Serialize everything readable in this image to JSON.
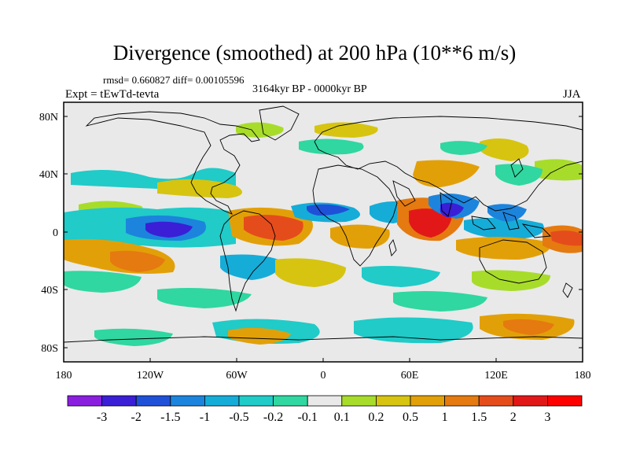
{
  "title": "Divergence (smoothed) at 200 hPa (10**6 m/s)",
  "stats": "rmsd= 0.660827 diff= 0.00105596",
  "period": "3164kyr BP - 0000kyr BP",
  "experiment": "Expt = tEwTd-tevta",
  "season": "JJA",
  "lat_ticks": [
    "80N",
    "40N",
    "0",
    "40S",
    "80S"
  ],
  "lon_ticks": [
    "180",
    "120W",
    "60W",
    "0",
    "60E",
    "120E",
    "180"
  ],
  "colorbar": {
    "labels": [
      "-3",
      "-2",
      "-1.5",
      "-1",
      "-0.5",
      "-0.2",
      "-0.1",
      "0.1",
      "0.2",
      "0.5",
      "1",
      "1.5",
      "2",
      "3"
    ],
    "colors": [
      "#8a1fe0",
      "#3a1fd6",
      "#1f50d8",
      "#1c84dc",
      "#16acd8",
      "#20cbc8",
      "#30d7a0",
      "#e9e9e9",
      "#a8dc2a",
      "#d6c410",
      "#e2a008",
      "#e57a10",
      "#e54c1c",
      "#e21818",
      "#ff0000"
    ]
  },
  "map_colors": {
    "background": "#e9e9e9",
    "pos1": "#a8dc2a",
    "pos2": "#d6c410",
    "pos3": "#e2a008",
    "pos4": "#e57a10",
    "pos5": "#e54c1c",
    "pos6": "#e21818",
    "neg1": "#30d7a0",
    "neg2": "#20cbc8",
    "neg3": "#16acd8",
    "neg4": "#1c84dc",
    "neg5": "#1f50d8",
    "neg6": "#3a1fd6"
  }
}
